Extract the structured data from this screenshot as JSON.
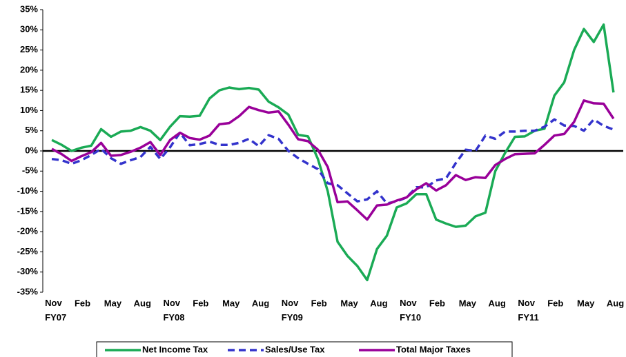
{
  "chart_data": {
    "type": "line",
    "categories": [
      "Nov\nFY07",
      null,
      null,
      "Feb",
      null,
      null,
      "May",
      null,
      null,
      "Aug",
      null,
      null,
      "Nov\nFY08",
      null,
      null,
      "Feb",
      null,
      null,
      "May",
      null,
      null,
      "Aug",
      null,
      null,
      "Nov\nFY09",
      null,
      null,
      "Feb",
      null,
      null,
      "May",
      null,
      null,
      "Aug",
      null,
      null,
      "Nov\nFY10",
      null,
      null,
      "Feb",
      null,
      null,
      "May",
      null,
      null,
      "Aug",
      null,
      null,
      "Nov\nFY11",
      null,
      null,
      "Feb",
      null,
      null,
      "May",
      null,
      null,
      "Aug"
    ],
    "series": [
      {
        "name": "Net Income Tax",
        "color": "#1aaa55",
        "dash": "solid",
        "values": [
          2.7,
          1.5,
          0,
          0.8,
          1.3,
          5.4,
          3.5,
          4.8,
          5.0,
          5.9,
          5.0,
          2.7,
          6.0,
          8.6,
          8.5,
          8.7,
          13.0,
          15.0,
          15.7,
          15.3,
          15.6,
          15.2,
          12.2,
          10.8,
          9.0,
          4.0,
          3.6,
          -2.0,
          -10,
          -22.5,
          -26,
          -28.5,
          -32,
          -24.3,
          -21,
          -14,
          -13,
          -10.7,
          -10.7,
          -17,
          -18,
          -18.8,
          -18.5,
          -16.2,
          -15.3,
          -5,
          -0.5,
          3.5,
          3.6,
          5.0,
          5.5,
          13.7,
          17,
          25,
          30.2,
          27,
          31.3,
          14.5
        ]
      },
      {
        "name": "Sales/Use Tax",
        "color": "#3333cc",
        "dash": "dashed",
        "values": [
          -2,
          -2.3,
          -3.2,
          -2.3,
          -1,
          0.5,
          -1.8,
          -3.2,
          -2.3,
          -1.5,
          1,
          -2,
          0.9,
          4.5,
          1.4,
          1.7,
          2.3,
          1.5,
          1.5,
          2.0,
          3.0,
          1.2,
          3.9,
          3.0,
          0,
          -1.8,
          -3.2,
          -4.5,
          -8,
          -8.5,
          -10.5,
          -12.5,
          -12,
          -10,
          -13,
          -12.5,
          -11.5,
          -9,
          -9,
          -7.3,
          -6.8,
          -3,
          0.3,
          0,
          3.8,
          3,
          4.8,
          4.8,
          5.0,
          5.0,
          6.0,
          7.8,
          6.3,
          6.2,
          5.0,
          7.8,
          6.2,
          5.3
        ]
      },
      {
        "name": "Total Major Taxes",
        "color": "#990099",
        "dash": "solid",
        "values": [
          0.5,
          -0.8,
          -2.5,
          -1.3,
          -0.3,
          2.0,
          -1.2,
          -1.0,
          -0.2,
          0.8,
          2.2,
          -1.0,
          2.7,
          4.5,
          3.2,
          2.8,
          3.8,
          6.6,
          6.9,
          8.6,
          10.9,
          10.1,
          9.5,
          9.8,
          6.5,
          2.9,
          2.4,
          0.3,
          -4,
          -12.7,
          -12.5,
          -14.7,
          -17,
          -13.5,
          -13.3,
          -12.3,
          -11.5,
          -9.5,
          -8.0,
          -9.8,
          -8.5,
          -6,
          -7.2,
          -6.5,
          -6.7,
          -3.5,
          -2.0,
          -0.8,
          -0.7,
          -0.6,
          1.5,
          3.8,
          4.2,
          7.2,
          12.5,
          11.8,
          11.7,
          8.0
        ]
      }
    ],
    "ylim": [
      -35,
      35
    ],
    "yticks": [
      {
        "value": -35,
        "label": "-35%"
      },
      {
        "value": -30,
        "label": "-30%"
      },
      {
        "value": -25,
        "label": "-25%"
      },
      {
        "value": -20,
        "label": "-20%"
      },
      {
        "value": -15,
        "label": "-15%"
      },
      {
        "value": -10,
        "label": "-10%"
      },
      {
        "value": -5,
        "label": "-5%"
      },
      {
        "value": 0,
        "label": "0%"
      },
      {
        "value": 5,
        "label": "5%"
      },
      {
        "value": 10,
        "label": "10%"
      },
      {
        "value": 15,
        "label": "15%"
      },
      {
        "value": 20,
        "label": "20%"
      },
      {
        "value": 25,
        "label": "25%"
      },
      {
        "value": 30,
        "label": "30%"
      },
      {
        "value": 35,
        "label": "35%"
      }
    ],
    "grid": false,
    "legend": "bottom"
  }
}
